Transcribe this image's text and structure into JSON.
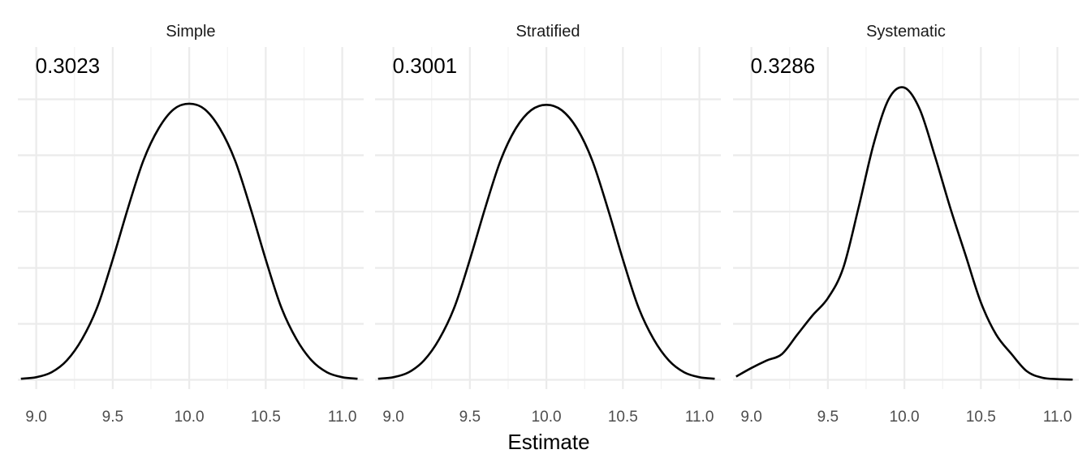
{
  "chart_data": {
    "type": "line",
    "subtype": "density",
    "xlabel": "Estimate",
    "ylabel": "",
    "xlim": [
      8.88,
      11.14
    ],
    "ylim": [
      0,
      1.4
    ],
    "x_ticks": [
      9.0,
      9.5,
      10.0,
      10.5,
      11.0
    ],
    "x_tick_labels": [
      "9.0",
      "9.5",
      "10.0",
      "10.5",
      "11.0"
    ],
    "y_ticks_shown": false,
    "grid": true,
    "legend": "none",
    "colors": {
      "line": "#000000",
      "grid": "#ebebeb",
      "background": "#ffffff"
    },
    "panels": [
      {
        "title": "Simple",
        "annotation": "0.3023",
        "series": [
          {
            "x": [
              8.9,
              9.0,
              9.1,
              9.2,
              9.3,
              9.4,
              9.5,
              9.6,
              9.7,
              9.8,
              9.9,
              10.0,
              10.1,
              10.2,
              10.3,
              10.4,
              10.5,
              10.6,
              10.7,
              10.8,
              10.9,
              11.0,
              11.1
            ],
            "y": [
              0.005,
              0.012,
              0.035,
              0.09,
              0.19,
              0.34,
              0.56,
              0.8,
              1.02,
              1.17,
              1.26,
              1.285,
              1.26,
              1.17,
              1.02,
              0.8,
              0.56,
              0.34,
              0.19,
              0.09,
              0.035,
              0.012,
              0.005
            ]
          }
        ]
      },
      {
        "title": "Stratified",
        "annotation": "0.3001",
        "series": [
          {
            "x": [
              8.9,
              9.0,
              9.1,
              9.2,
              9.3,
              9.4,
              9.5,
              9.6,
              9.7,
              9.8,
              9.9,
              10.0,
              10.1,
              10.2,
              10.3,
              10.4,
              10.5,
              10.6,
              10.7,
              10.8,
              10.9,
              11.0,
              11.1
            ],
            "y": [
              0.005,
              0.012,
              0.035,
              0.09,
              0.19,
              0.34,
              0.56,
              0.8,
              1.02,
              1.17,
              1.255,
              1.28,
              1.255,
              1.17,
              1.02,
              0.8,
              0.56,
              0.34,
              0.19,
              0.09,
              0.035,
              0.012,
              0.005
            ]
          }
        ]
      },
      {
        "title": "Systematic",
        "annotation": "0.3286",
        "series": [
          {
            "x": [
              8.9,
              9.0,
              9.1,
              9.2,
              9.3,
              9.4,
              9.5,
              9.6,
              9.7,
              9.8,
              9.9,
              10.0,
              10.1,
              10.2,
              10.3,
              10.4,
              10.5,
              10.6,
              10.7,
              10.8,
              10.9,
              11.0,
              11.1
            ],
            "y": [
              0.015,
              0.055,
              0.09,
              0.12,
              0.21,
              0.3,
              0.38,
              0.52,
              0.8,
              1.1,
              1.31,
              1.36,
              1.26,
              1.04,
              0.8,
              0.58,
              0.36,
              0.21,
              0.12,
              0.04,
              0.01,
              0.003,
              0.001
            ]
          }
        ]
      }
    ]
  }
}
